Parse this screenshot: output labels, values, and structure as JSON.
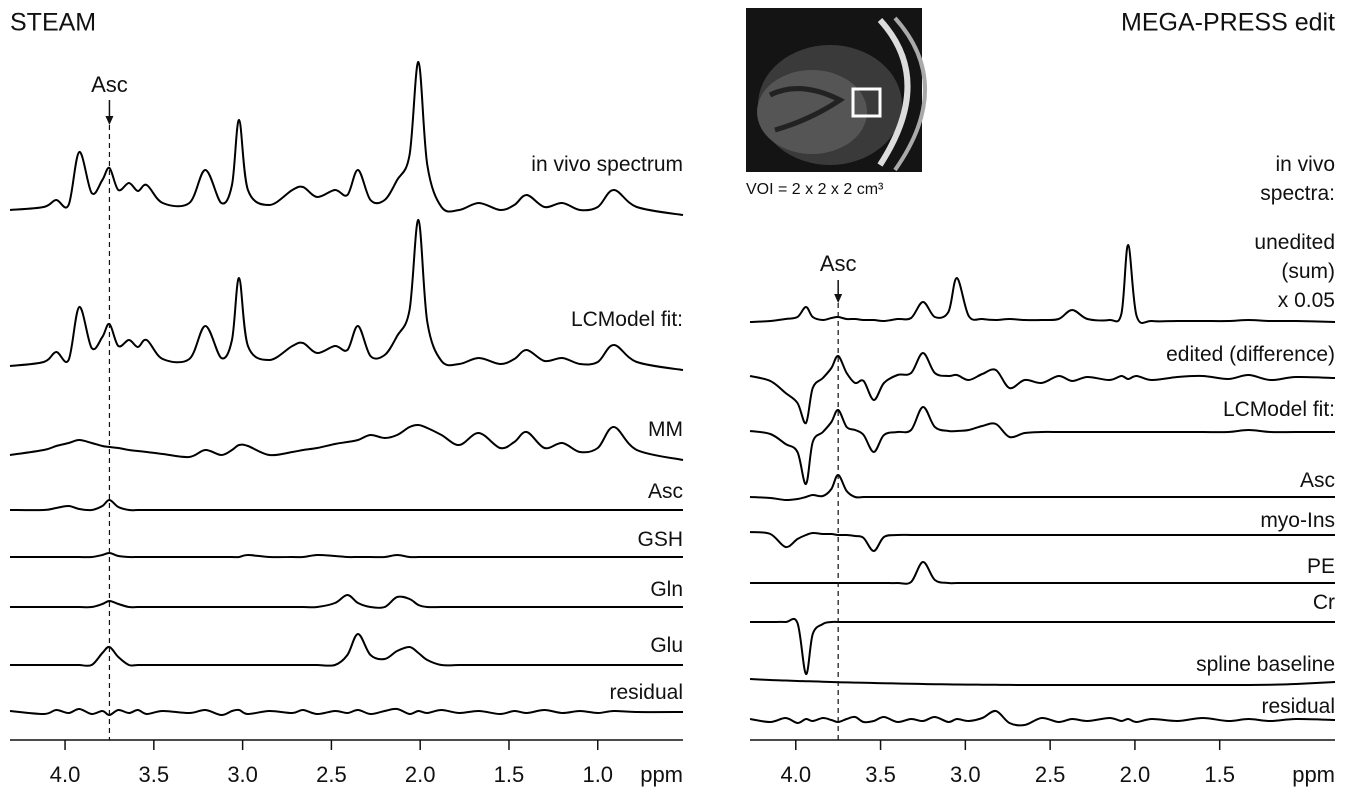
{
  "chart_data": [
    {
      "type": "line",
      "title": "STEAM",
      "xlabel": "ppm",
      "xlim": [
        4.31,
        0.52
      ],
      "xticks": [
        {
          "value": 4,
          "label": "4.0"
        },
        3.5,
        {
          "value": 3,
          "label": "3.0"
        },
        2.5,
        {
          "value": 2,
          "label": "2.0"
        },
        1.5,
        {
          "value": 1,
          "label": "1.0"
        }
      ],
      "color": "#000000",
      "annotations": [
        {
          "text": "Asc",
          "x": 3.75
        }
      ],
      "x": [
        4.31,
        4.12,
        4.05,
        3.98,
        3.92,
        3.85,
        3.79,
        3.75,
        3.7,
        3.64,
        3.59,
        3.54,
        3.45,
        3.3,
        3.21,
        3.12,
        3.06,
        3.02,
        2.97,
        2.85,
        2.72,
        2.66,
        2.58,
        2.48,
        2.41,
        2.35,
        2.28,
        2.2,
        2.13,
        2.06,
        2.01,
        1.96,
        1.88,
        1.78,
        1.67,
        1.55,
        1.47,
        1.4,
        1.3,
        1.2,
        1.1,
        1.0,
        0.91,
        0.78,
        0.52
      ],
      "series": [
        {
          "name": "in vivo spectrum",
          "values": [
            5,
            8,
            15,
            10,
            63,
            22,
            35,
            47,
            25,
            32,
            24,
            30,
            12,
            12,
            45,
            12,
            30,
            95,
            25,
            10,
            25,
            28,
            18,
            25,
            20,
            45,
            15,
            15,
            35,
            60,
            153,
            50,
            8,
            5,
            12,
            5,
            10,
            20,
            8,
            12,
            5,
            8,
            25,
            8,
            0
          ]
        },
        {
          "name": "LCModel fit:",
          "values": [
            4,
            8,
            18,
            10,
            63,
            22,
            33,
            46,
            24,
            30,
            23,
            30,
            11,
            11,
            44,
            12,
            30,
            92,
            24,
            10,
            24,
            27,
            17,
            24,
            20,
            44,
            14,
            15,
            34,
            60,
            150,
            48,
            9,
            6,
            12,
            6,
            11,
            20,
            9,
            12,
            6,
            8,
            25,
            8,
            0
          ]
        },
        {
          "name": "MM",
          "values": [
            5,
            10,
            14,
            17,
            20,
            17,
            14,
            13,
            12,
            10,
            9,
            8,
            6,
            3,
            10,
            5,
            10,
            15,
            14,
            5,
            8,
            10,
            12,
            16,
            18,
            20,
            25,
            22,
            25,
            33,
            35,
            32,
            25,
            15,
            27,
            12,
            18,
            28,
            12,
            17,
            8,
            12,
            33,
            10,
            0
          ]
        },
        {
          "name": "Asc",
          "values": [
            0,
            0,
            2,
            4,
            1,
            0,
            4,
            10,
            3,
            0,
            0,
            0,
            0,
            0,
            0,
            0,
            0,
            0,
            0,
            0,
            0,
            0,
            0,
            0,
            0,
            0,
            0,
            0,
            0,
            0,
            0,
            0,
            0,
            0,
            0,
            0,
            0,
            0,
            0,
            0,
            0,
            0,
            0,
            0,
            0
          ]
        },
        {
          "name": "GSH",
          "values": [
            0,
            0,
            0,
            0,
            0,
            0,
            2,
            4,
            1,
            0,
            0,
            0,
            0,
            0,
            0,
            0,
            0,
            0,
            2,
            0,
            0,
            0,
            2,
            1,
            0,
            0,
            0,
            0,
            2,
            0,
            0,
            0,
            0,
            0,
            0,
            0,
            0,
            0,
            0,
            0,
            0,
            0,
            0,
            0,
            0
          ]
        },
        {
          "name": "Gln",
          "values": [
            0,
            0,
            0,
            0,
            0,
            0,
            3,
            6,
            3,
            0,
            0,
            0,
            0,
            0,
            0,
            0,
            0,
            0,
            0,
            0,
            0,
            0,
            0,
            4,
            12,
            4,
            0,
            0,
            10,
            8,
            2,
            0,
            0,
            0,
            0,
            0,
            0,
            0,
            0,
            0,
            0,
            0,
            0,
            0,
            0
          ]
        },
        {
          "name": "Glu",
          "values": [
            0,
            0,
            0,
            0,
            0,
            0,
            12,
            18,
            8,
            0,
            0,
            0,
            0,
            0,
            0,
            0,
            0,
            0,
            0,
            0,
            0,
            0,
            0,
            0,
            10,
            31,
            10,
            6,
            14,
            18,
            12,
            5,
            0,
            0,
            0,
            0,
            0,
            0,
            0,
            0,
            0,
            0,
            0,
            0,
            0
          ]
        },
        {
          "name": "residual",
          "values": [
            1,
            -2,
            2,
            -1,
            3,
            -2,
            1,
            -3,
            2,
            -1,
            2,
            -2,
            1,
            -1,
            2,
            -3,
            1,
            2,
            -2,
            1,
            -1,
            2,
            -2,
            1,
            -1,
            2,
            -2,
            1,
            3,
            -2,
            1,
            -1,
            2,
            -1,
            1,
            -2,
            1,
            -1,
            2,
            -1,
            1,
            -1,
            1,
            0,
            0
          ]
        }
      ]
    },
    {
      "type": "line",
      "title": "MEGA-PRESS edit",
      "xlabel": "ppm",
      "xlim": [
        4.27,
        0.82
      ],
      "xticks": [
        {
          "value": 4,
          "label": "4.0"
        },
        3.5,
        {
          "value": 3,
          "label": "3.0"
        },
        2.5,
        {
          "value": 2,
          "label": "2.0"
        },
        1.5
      ],
      "color": "#000000",
      "inset_caption": "VOI = 2 x 2 x 2 cm³",
      "group_label": "in vivo\nspectra:",
      "annotations": [
        {
          "text": "Asc",
          "x": 3.75
        }
      ],
      "x": [
        4.27,
        4.15,
        4.06,
        3.99,
        3.94,
        3.9,
        3.84,
        3.79,
        3.75,
        3.7,
        3.65,
        3.6,
        3.54,
        3.48,
        3.4,
        3.32,
        3.25,
        3.18,
        3.1,
        3.05,
        2.98,
        2.9,
        2.82,
        2.74,
        2.65,
        2.55,
        2.45,
        2.37,
        2.28,
        2.15,
        2.08,
        2.04,
        1.99,
        1.9,
        1.75,
        1.6,
        1.45,
        1.33,
        1.2,
        1.05,
        0.82
      ],
      "series": [
        {
          "name": "unedited\n(sum)\nx 0.05",
          "values": [
            0,
            1,
            3,
            5,
            15,
            5,
            2,
            4,
            5,
            3,
            3,
            2,
            2,
            1,
            3,
            4,
            20,
            5,
            10,
            44,
            6,
            3,
            2,
            3,
            2,
            2,
            3,
            12,
            3,
            2,
            8,
            77,
            6,
            1,
            1,
            1,
            1,
            2,
            1,
            1,
            0
          ]
        },
        {
          "name": "edited (difference)",
          "values": [
            2,
            -3,
            -15,
            -25,
            -45,
            -10,
            0,
            10,
            22,
            5,
            -5,
            -3,
            -22,
            -5,
            3,
            5,
            25,
            5,
            2,
            3,
            -2,
            4,
            8,
            -10,
            -2,
            -5,
            2,
            -3,
            1,
            -2,
            2,
            -1,
            2,
            -2,
            1,
            2,
            -1,
            3,
            -2,
            1,
            0
          ]
        },
        {
          "name": "LCModel fit:",
          "values": [
            1,
            -2,
            -12,
            -20,
            -52,
            -10,
            0,
            10,
            22,
            5,
            2,
            -3,
            -20,
            -3,
            0,
            2,
            25,
            5,
            1,
            1,
            2,
            6,
            8,
            -5,
            -1,
            0,
            0,
            0,
            0,
            0,
            0,
            0,
            0,
            0,
            0,
            0,
            0,
            2,
            0,
            0,
            0
          ]
        },
        {
          "name": "Asc",
          "values": [
            0,
            -1,
            -3,
            -2,
            0,
            2,
            1,
            8,
            22,
            6,
            0,
            0,
            0,
            0,
            0,
            0,
            0,
            0,
            0,
            0,
            0,
            0,
            0,
            0,
            0,
            0,
            0,
            0,
            0,
            0,
            0,
            0,
            0,
            0,
            0,
            0,
            0,
            0,
            0,
            0,
            0
          ]
        },
        {
          "name": "myo-Ins",
          "values": [
            3,
            1,
            -12,
            -4,
            0,
            2,
            1,
            1,
            0,
            0,
            -1,
            -3,
            -16,
            -2,
            0,
            0,
            0,
            0,
            0,
            0,
            0,
            0,
            0,
            0,
            0,
            0,
            0,
            0,
            0,
            0,
            0,
            0,
            0,
            0,
            0,
            0,
            0,
            0,
            0,
            0,
            0
          ]
        },
        {
          "name": "PE",
          "values": [
            0,
            0,
            0,
            0,
            0,
            0,
            0,
            0,
            0,
            0,
            0,
            0,
            0,
            0,
            0,
            1,
            21,
            3,
            0,
            0,
            0,
            0,
            0,
            0,
            0,
            0,
            0,
            0,
            0,
            0,
            0,
            0,
            0,
            0,
            0,
            0,
            0,
            0,
            0,
            0,
            0
          ]
        },
        {
          "name": "Cr",
          "values": [
            0,
            0,
            0,
            -1,
            -52,
            -12,
            -2,
            0,
            0,
            0,
            0,
            0,
            0,
            0,
            0,
            0,
            0,
            0,
            0,
            0,
            0,
            0,
            0,
            0,
            0,
            0,
            0,
            0,
            0,
            0,
            0,
            0,
            0,
            0,
            0,
            0,
            0,
            0,
            0,
            0,
            0
          ]
        },
        {
          "name": "spline baseline",
          "values": [
            6,
            5,
            4.5,
            4,
            3.8,
            3.6,
            3.3,
            3,
            2.8,
            2.6,
            2.4,
            2.2,
            2,
            1.8,
            1.5,
            1.2,
            1,
            0.8,
            0.6,
            0.5,
            0.4,
            0.3,
            0.2,
            0.1,
            0,
            0,
            0,
            0,
            0,
            0,
            0,
            0,
            0,
            0,
            0,
            0,
            0,
            0,
            0.3,
            1,
            3
          ]
        },
        {
          "name": "residual",
          "values": [
            1,
            -2,
            2,
            -3,
            1,
            -1,
            2,
            0,
            -2,
            1,
            3,
            -2,
            -1,
            3,
            -2,
            1,
            -1,
            3,
            -2,
            1,
            -1,
            2,
            9,
            -3,
            -5,
            2,
            -2,
            1,
            -1,
            2,
            -1,
            1,
            -2,
            1,
            -1,
            2,
            -1,
            1,
            -1,
            1,
            0
          ]
        }
      ]
    }
  ]
}
